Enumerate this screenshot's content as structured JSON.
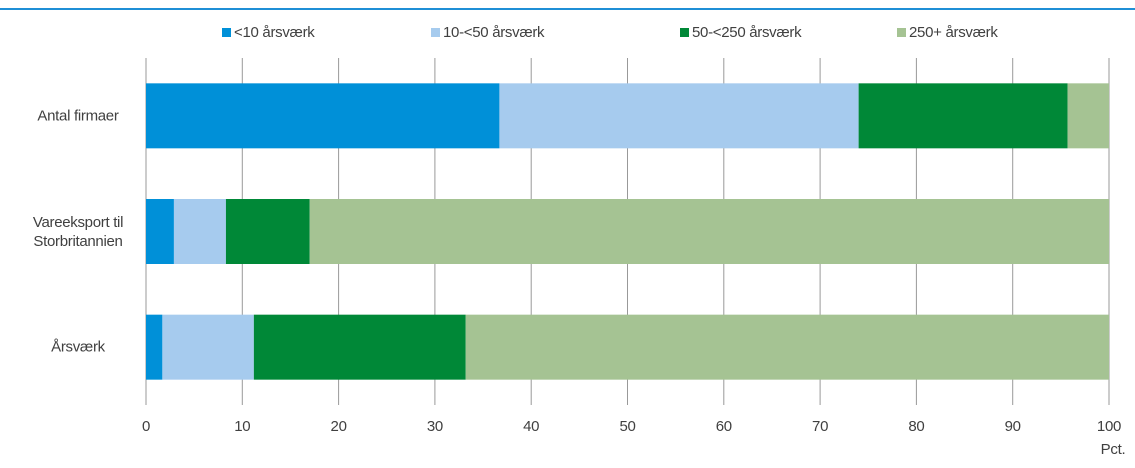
{
  "chart_data": {
    "type": "stacked-barh",
    "categories": [
      "Antal firmaer",
      "Vareeksport til Storbritannien",
      "Årsværk"
    ],
    "series": [
      {
        "name": "<10 årsværk",
        "color": "#0090d8",
        "values": [
          36.7,
          2.9,
          1.7
        ]
      },
      {
        "name": "10-<50 årsværk",
        "color": "#a6cbee",
        "values": [
          37.3,
          5.4,
          9.5
        ]
      },
      {
        "name": "50-<250 årsværk",
        "color": "#008837",
        "values": [
          21.7,
          8.7,
          22.0
        ]
      },
      {
        "name": "250+ årsværk",
        "color": "#a5c393",
        "values": [
          4.3,
          83.0,
          66.8
        ]
      }
    ],
    "xlim": [
      0,
      100
    ],
    "xticks": [
      0,
      10,
      20,
      30,
      40,
      50,
      60,
      70,
      80,
      90,
      100
    ],
    "xlabel": "Pct.",
    "grid": true
  }
}
